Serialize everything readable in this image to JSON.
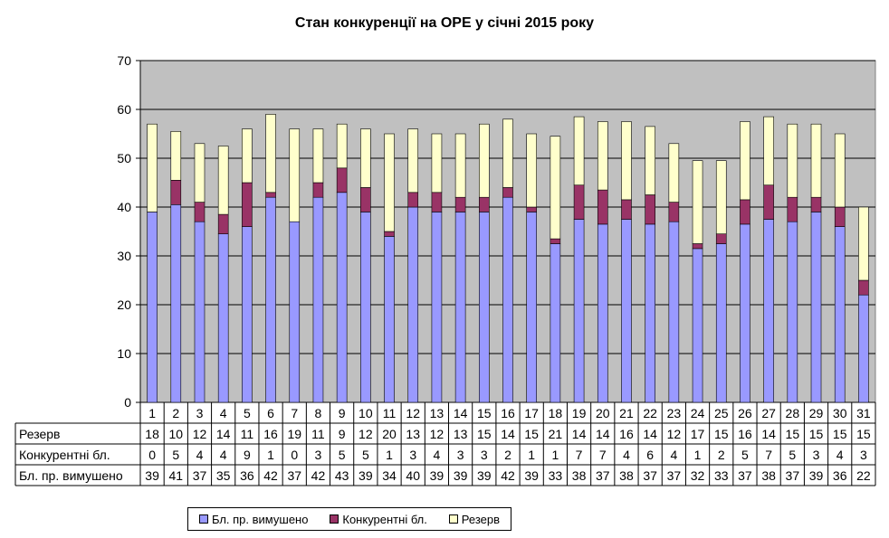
{
  "chart_data": {
    "type": "bar",
    "stacked": true,
    "title": "Стан конкуренції на ОРЕ  у січні 2015 року",
    "xlabel": "",
    "ylabel": "",
    "ylim": [
      0,
      70
    ],
    "yticks": [
      "0",
      "10",
      "20",
      "30",
      "40",
      "50",
      "60",
      "70"
    ],
    "plot_background": "#c0c0c0",
    "gridlines": true,
    "legend_position": "bottom",
    "categories": [
      "1",
      "2",
      "3",
      "4",
      "5",
      "6",
      "7",
      "8",
      "9",
      "10",
      "11",
      "12",
      "13",
      "14",
      "15",
      "16",
      "17",
      "18",
      "19",
      "20",
      "21",
      "22",
      "23",
      "24",
      "25",
      "26",
      "27",
      "28",
      "29",
      "30",
      "31"
    ],
    "series": [
      {
        "name": "Бл. пр. вимушено",
        "color": "#9999ff",
        "values": [
          39,
          40.5,
          37,
          34.5,
          36,
          42,
          37,
          42,
          43,
          39,
          34,
          40,
          39,
          39,
          39,
          42,
          39,
          32.5,
          37.5,
          36.5,
          37.5,
          36.5,
          37,
          31.5,
          32.5,
          36.5,
          37.5,
          37,
          39,
          36,
          22
        ],
        "labels": [
          "39",
          "41",
          "37",
          "35",
          "36",
          "42",
          "37",
          "42",
          "43",
          "39",
          "34",
          "40",
          "39",
          "39",
          "39",
          "42",
          "39",
          "33",
          "38",
          "37",
          "38",
          "37",
          "37",
          "32",
          "33",
          "37",
          "38",
          "37",
          "39",
          "36",
          "22"
        ]
      },
      {
        "name": "Конкурентні бл.",
        "color": "#993366",
        "values": [
          0,
          5,
          4,
          4,
          9,
          1,
          0,
          3,
          5,
          5,
          1,
          3,
          4,
          3,
          3,
          2,
          1,
          1,
          7,
          7,
          4,
          6,
          4,
          1,
          2,
          5,
          7,
          5,
          3,
          4,
          3
        ],
        "labels": [
          "0",
          "5",
          "4",
          "4",
          "9",
          "1",
          "0",
          "3",
          "5",
          "5",
          "1",
          "3",
          "4",
          "3",
          "3",
          "2",
          "1",
          "1",
          "7",
          "7",
          "4",
          "6",
          "4",
          "1",
          "2",
          "5",
          "7",
          "5",
          "3",
          "4",
          "3"
        ]
      },
      {
        "name": "Резерв",
        "color": "#ffffcc",
        "values": [
          18,
          10,
          12,
          14,
          11,
          16,
          19,
          11,
          9,
          12,
          20,
          13,
          12,
          13,
          15,
          14,
          15,
          21,
          14,
          14,
          16,
          14,
          12,
          17,
          15,
          16,
          14,
          15,
          15,
          15,
          15
        ],
        "labels": [
          "18",
          "10",
          "12",
          "14",
          "11",
          "16",
          "19",
          "11",
          "9",
          "12",
          "20",
          "13",
          "12",
          "13",
          "15",
          "14",
          "15",
          "21",
          "14",
          "14",
          "16",
          "14",
          "12",
          "17",
          "15",
          "16",
          "14",
          "15",
          "15",
          "15",
          "15"
        ]
      }
    ],
    "table_row_order": [
      "Резерв",
      "Конкурентні бл.",
      "Бл. пр. вимушено"
    ]
  }
}
